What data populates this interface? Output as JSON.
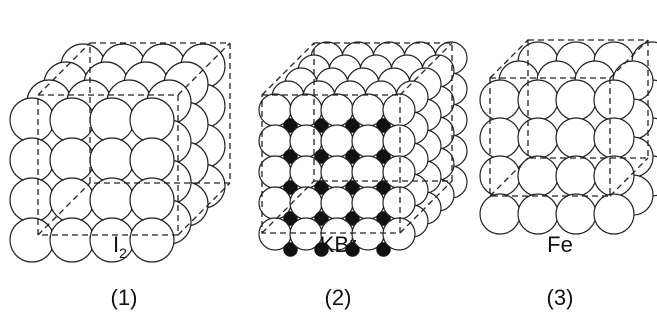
{
  "structures": [
    {
      "formula": "I",
      "subscript": "2",
      "number": "(1)"
    },
    {
      "formula": "KBr",
      "number": "(2)"
    },
    {
      "formula": "Fe",
      "number": "(3)"
    }
  ]
}
